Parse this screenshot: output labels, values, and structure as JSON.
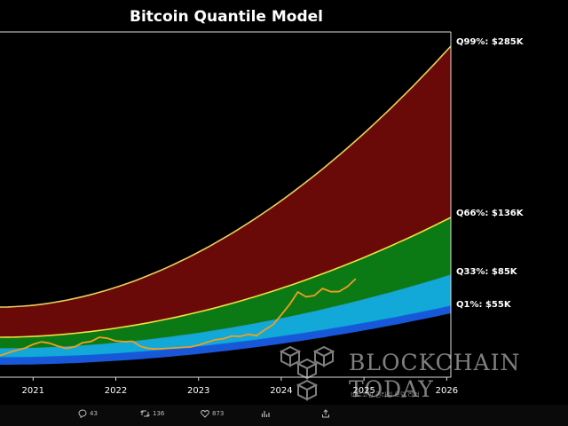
{
  "chart_data": {
    "type": "area",
    "title": "Bitcoin Quantile Model",
    "xlabel": "",
    "ylabel": "",
    "x_ticks": [
      "2021",
      "2022",
      "2023",
      "2024",
      "2025",
      "2026"
    ],
    "quantile_labels": [
      {
        "name": "Q99%",
        "value": "$285K",
        "label": "Q99%: $285K",
        "color": "#e8d060"
      },
      {
        "name": "Q66%",
        "value": "$136K",
        "label": "Q66%: $136K",
        "color": "#f0e040"
      },
      {
        "name": "Q33%",
        "value": "$85K",
        "label": "Q33%: $85K",
        "color": "#1fa0d0"
      },
      {
        "name": "Q1%",
        "value": "$55K",
        "label": "Q1%: $55K",
        "color": "#1060e0"
      }
    ],
    "band_colors": {
      "upper": "#6a0a08",
      "middle": "#0c7a14",
      "lower": "#12a8d8",
      "base": "#1858d8",
      "price": "#f0a020"
    },
    "price_series": {
      "name": "",
      "x": [
        2020.6,
        2020.75,
        2020.9,
        2021.0,
        2021.1,
        2021.2,
        2021.3,
        2021.4,
        2021.5,
        2021.6,
        2021.7,
        2021.8,
        2021.9,
        2022.0,
        2022.1,
        2022.2,
        2022.3,
        2022.4,
        2022.5,
        2022.6,
        2022.7,
        2022.8,
        2022.9,
        2023.0,
        2023.1,
        2023.2,
        2023.3,
        2023.4,
        2023.5,
        2023.6,
        2023.7,
        2023.8,
        2023.9,
        2024.0,
        2024.1,
        2024.2,
        2024.3,
        2024.4,
        2024.5,
        2024.6,
        2024.7,
        2024.8,
        2024.9
      ],
      "relative_level": [
        0.1,
        0.3,
        0.45,
        0.62,
        0.72,
        0.64,
        0.48,
        0.36,
        0.4,
        0.56,
        0.58,
        0.72,
        0.64,
        0.5,
        0.44,
        0.42,
        0.2,
        0.1,
        0.06,
        0.05,
        0.04,
        0.03,
        0.02,
        0.05,
        0.1,
        0.14,
        0.14,
        0.18,
        0.14,
        0.16,
        0.1,
        0.2,
        0.28,
        0.45,
        0.62,
        0.82,
        0.68,
        0.66,
        0.74,
        0.64,
        0.6,
        0.64,
        0.72
      ]
    }
  },
  "watermark": {
    "line1": "BLOCKCHAIN",
    "line2": "TODAY",
    "caption": "비트코인 퀀타일 모델 리더"
  },
  "social": {
    "replies": "43",
    "reposts": "136",
    "likes": "873",
    "views": "",
    "icons": [
      "reply-icon",
      "repost-icon",
      "like-icon",
      "views-icon",
      "share-icon"
    ]
  }
}
